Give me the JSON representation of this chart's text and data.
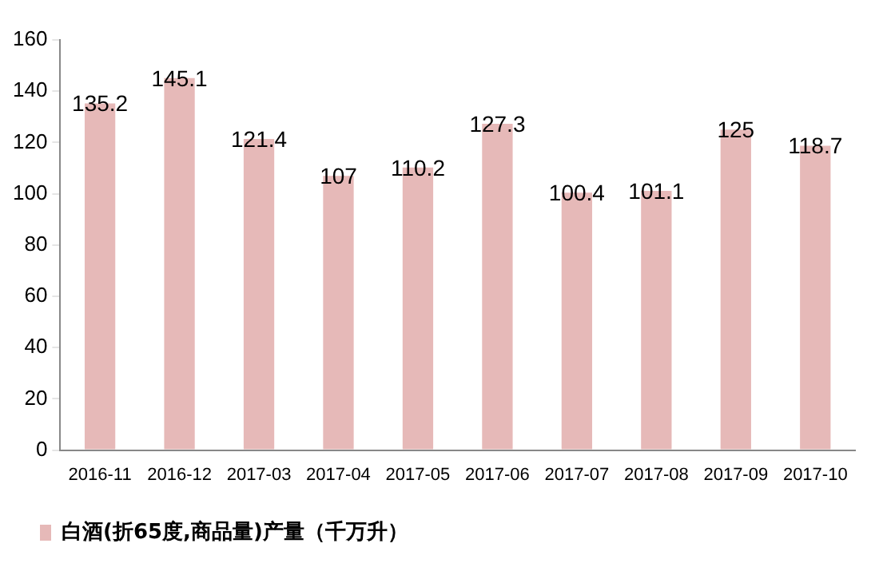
{
  "chart_data": {
    "type": "bar",
    "categories": [
      "2016-11",
      "2016-12",
      "2017-03",
      "2017-04",
      "2017-05",
      "2017-06",
      "2017-07",
      "2017-08",
      "2017-09",
      "2017-10"
    ],
    "series": [
      {
        "name": "白酒(折65度,商品量)产量（千万升）",
        "color": "#e6b9b8",
        "values": [
          135.2,
          145.1,
          121.4,
          107,
          110.2,
          127.3,
          100.4,
          101.1,
          125,
          118.7
        ]
      }
    ],
    "ylim": [
      0,
      160
    ],
    "yticks": [
      0,
      20,
      40,
      60,
      80,
      100,
      120,
      140,
      160
    ],
    "grid": false,
    "legend": "bottom",
    "data_labels": true
  }
}
